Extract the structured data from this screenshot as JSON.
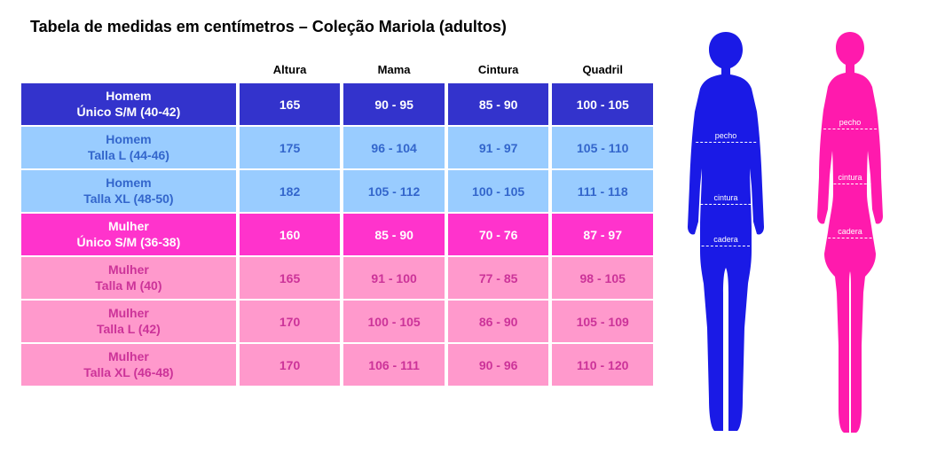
{
  "title": "Tabela de medidas em centímetros – Coleção Mariola (adultos)",
  "columns": [
    "Altura",
    "Mama",
    "Cintura",
    "Quadril"
  ],
  "rows": [
    {
      "labelTop": "Homem",
      "labelBottom": "Único S/M (40-42)",
      "rowBg": "#3333cc",
      "rowText": "#ffffff",
      "values": [
        "165",
        "90 - 95",
        "85 - 90",
        "100 - 105"
      ]
    },
    {
      "labelTop": "Homem",
      "labelBottom": "Talla L (44-46)",
      "rowBg": "#99ccff",
      "rowText": "#3366cc",
      "values": [
        "175",
        "96 - 104",
        "91 - 97",
        "105 - 110"
      ]
    },
    {
      "labelTop": "Homem",
      "labelBottom": "Talla XL (48-50)",
      "rowBg": "#99ccff",
      "rowText": "#3366cc",
      "values": [
        "182",
        "105 - 112",
        "100 - 105",
        "111 - 118"
      ]
    },
    {
      "labelTop": "Mulher",
      "labelBottom": "Único S/M (36-38)",
      "rowBg": "#ff33cc",
      "rowText": "#ffffff",
      "values": [
        "160",
        "85 - 90",
        "70 - 76",
        "87 - 97"
      ]
    },
    {
      "labelTop": "Mulher",
      "labelBottom": "Talla M (40)",
      "rowBg": "#ff99cc",
      "rowText": "#cc3399",
      "values": [
        "165",
        "91 - 100",
        "77 - 85",
        "98 - 105"
      ]
    },
    {
      "labelTop": "Mulher",
      "labelBottom": "Talla L (42)",
      "rowBg": "#ff99cc",
      "rowText": "#cc3399",
      "values": [
        "170",
        "100 - 105",
        "86 - 90",
        "105 - 109"
      ]
    },
    {
      "labelTop": "Mulher",
      "labelBottom": "Talla XL (46-48)",
      "rowBg": "#ff99cc",
      "rowText": "#cc3399",
      "values": [
        "170",
        "106 - 111",
        "90 - 96",
        "110 - 120"
      ]
    }
  ],
  "silhouettes": {
    "male": {
      "color": "#1a1ae6",
      "labels": [
        {
          "text": "pecho",
          "topPct": 25,
          "widthPct": 52
        },
        {
          "text": "cintura",
          "topPct": 40,
          "widthPct": 44
        },
        {
          "text": "cadera",
          "topPct": 50,
          "widthPct": 58
        }
      ]
    },
    "female": {
      "color": "#ff1aad",
      "labels": [
        {
          "text": "pecho",
          "topPct": 22,
          "widthPct": 46
        },
        {
          "text": "cintura",
          "topPct": 35,
          "widthPct": 36
        },
        {
          "text": "cadera",
          "topPct": 48,
          "widthPct": 54
        }
      ]
    }
  }
}
